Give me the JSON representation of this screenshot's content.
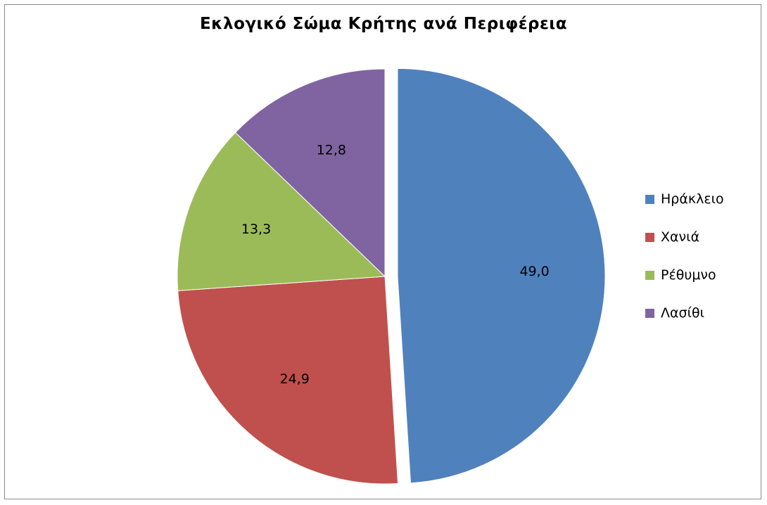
{
  "chart_data": {
    "type": "pie",
    "title": "Εκλογικό Σώμα Κρήτης ανά Περιφέρεια",
    "categories": [
      "Ηράκλειο",
      "Χανιά",
      "Ρέθυμνο",
      "Λασίθι"
    ],
    "values": [
      49.0,
      24.9,
      13.3,
      12.8
    ],
    "labels": [
      "49,0",
      "24,9",
      "13,3",
      "12,8"
    ],
    "colors": [
      "#4f81bd",
      "#c0504d",
      "#9bbb59",
      "#8064a2"
    ],
    "exploded": [
      "Ηράκλειο"
    ],
    "start_angle": "12 o'clock",
    "direction": "clockwise",
    "legend": "right"
  }
}
